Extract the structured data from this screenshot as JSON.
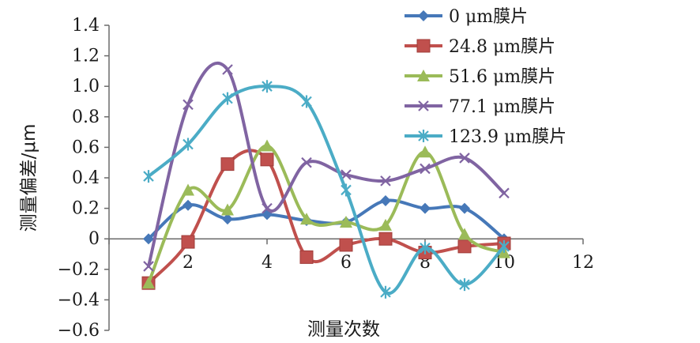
{
  "chart_data": {
    "type": "line",
    "title": "",
    "xlabel": "测量次数",
    "ylabel": "测量偏差/μm",
    "xlim": [
      0,
      12
    ],
    "ylim": [
      -0.6,
      1.4
    ],
    "x_ticks": [
      "2",
      "4",
      "6",
      "8",
      "10",
      "12"
    ],
    "y_ticks": [
      "1.4",
      "1.2",
      "1.0",
      "0.8",
      "0.6",
      "0.4",
      "0.2",
      "0",
      "−0.2",
      "−0.4",
      "−0.6"
    ],
    "smooth": true,
    "grid": false,
    "legend_position": "top-right",
    "x": [
      1,
      2,
      3,
      4,
      5,
      6,
      7,
      8,
      9,
      10
    ],
    "series": [
      {
        "name": "0 μm膜片",
        "color": "#4678b8",
        "marker": "diamond",
        "values": [
          0.0,
          0.22,
          0.13,
          0.16,
          0.12,
          0.11,
          0.25,
          0.2,
          0.2,
          0.0
        ]
      },
      {
        "name": "24.8 μm膜片",
        "color": "#c0504d",
        "marker": "square",
        "values": [
          -0.29,
          -0.02,
          0.49,
          0.52,
          -0.12,
          -0.04,
          0.0,
          -0.09,
          -0.05,
          -0.03
        ]
      },
      {
        "name": "51.6 μm膜片",
        "color": "#9bbb59",
        "marker": "triangle",
        "values": [
          -0.29,
          0.32,
          0.19,
          0.61,
          0.13,
          0.11,
          0.09,
          0.57,
          0.03,
          -0.09
        ]
      },
      {
        "name": "77.1 μm膜片",
        "color": "#8064a2",
        "marker": "x",
        "values": [
          -0.18,
          0.88,
          1.11,
          0.2,
          0.5,
          0.42,
          0.38,
          0.46,
          0.53,
          0.3
        ]
      },
      {
        "name": "123.9 μm膜片",
        "color": "#4bacc6",
        "marker": "star",
        "values": [
          0.41,
          0.62,
          0.92,
          1.0,
          0.9,
          0.32,
          -0.35,
          -0.06,
          -0.3,
          -0.05
        ]
      }
    ]
  }
}
